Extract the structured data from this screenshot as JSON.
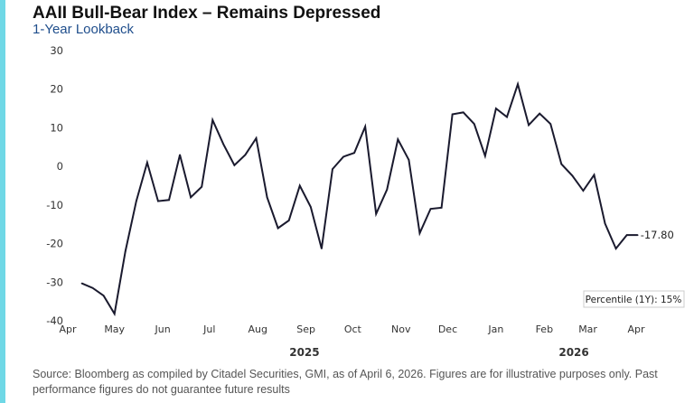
{
  "colors": {
    "accent": "#6fd8e6",
    "subtitle": "#1f4e8c",
    "line": "#1a1a2e"
  },
  "header": {
    "title": "AAII Bull-Bear Index – Remains Depressed",
    "subtitle": "1-Year Lookback"
  },
  "chart_data": {
    "type": "line",
    "title": "AAII Bull-Bear Index – Remains Depressed",
    "subtitle": "1-Year Lookback",
    "ylim": [
      -40,
      30
    ],
    "yticks": [
      30,
      20,
      10,
      0,
      -10,
      -20,
      -30,
      -40
    ],
    "xlim": [
      "2025-04-01",
      "2026-04-15"
    ],
    "xticks": [
      {
        "date": "2025-04-01",
        "label": "Apr"
      },
      {
        "date": "2025-05-01",
        "label": "May"
      },
      {
        "date": "2025-06-01",
        "label": "Jun"
      },
      {
        "date": "2025-07-01",
        "label": "Jul"
      },
      {
        "date": "2025-08-01",
        "label": "Aug"
      },
      {
        "date": "2025-09-01",
        "label": "Sep"
      },
      {
        "date": "2025-10-01",
        "label": "Oct"
      },
      {
        "date": "2025-11-01",
        "label": "Nov"
      },
      {
        "date": "2025-12-01",
        "label": "Dec"
      },
      {
        "date": "2026-01-01",
        "label": "Jan"
      },
      {
        "date": "2026-02-01",
        "label": "Feb"
      },
      {
        "date": "2026-03-01",
        "label": "Mar"
      },
      {
        "date": "2026-04-01",
        "label": "Apr"
      }
    ],
    "year_labels": [
      {
        "date": "2025-08-31",
        "label": "2025"
      },
      {
        "date": "2026-02-20",
        "label": "2026"
      }
    ],
    "grid": false,
    "series": [
      {
        "start_date": "2025-04-10",
        "frequency": "weekly",
        "values": [
          -30.3,
          -31.5,
          -33.5,
          -38.2,
          -22,
          -9,
          1,
          -9,
          -8.7,
          3,
          -8,
          -5.3,
          12,
          5.7,
          0.3,
          3,
          7.3,
          -8,
          -16,
          -14,
          -5,
          -10.5,
          -21.3,
          -0.7,
          2.5,
          3.5,
          10.3,
          -12.3,
          -6,
          7,
          1.7,
          -17.3,
          -11,
          -10.7,
          13.5,
          14,
          11,
          2.7,
          15,
          12.8,
          21.3,
          10.7,
          13.7,
          11,
          0.6,
          -2.4,
          -6.3,
          -2.2,
          -14.8,
          -21.3,
          -17.8,
          -17.8
        ]
      }
    ],
    "last_value_label": "-17.80",
    "annotation": "Percentile (1Y): 15%"
  },
  "footer": {
    "source": "Source: Bloomberg as compiled by Citadel Securities, GMI, as of April 6, 2026. Figures are for illustrative purposes only. Past performance figures do not guarantee future results"
  }
}
